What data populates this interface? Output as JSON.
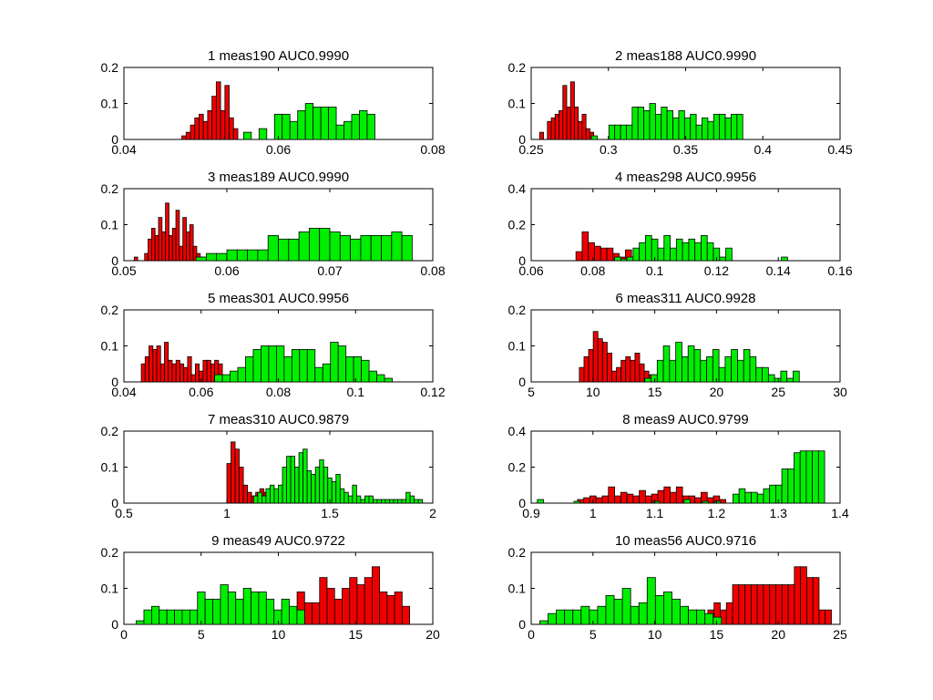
{
  "colors": {
    "red": "#ee0000",
    "green": "#00ee00",
    "edge": "#000000",
    "background": "#ffffff",
    "axes": "#000000"
  },
  "chart_data": [
    {
      "type": "bar",
      "title": "1 meas190 AUC0.9990",
      "xlim": [
        0.04,
        0.08
      ],
      "ylim": [
        0,
        0.2
      ],
      "xticks": [
        "0.04",
        "0.06",
        "0.08"
      ],
      "xtick_values": [
        0.04,
        0.06,
        0.08
      ],
      "yticks": [
        "0",
        "0.1",
        "0.2"
      ],
      "ytick_values": [
        0,
        0.1,
        0.2
      ],
      "series": [
        {
          "color": "red",
          "bin_edges": [
            0.0475,
            0.05475
          ],
          "values": [
            0.01,
            0.02,
            0.04,
            0.06,
            0.07,
            0.05,
            0.08,
            0.12,
            0.16,
            0.08,
            0.15,
            0.06,
            0.03
          ]
        },
        {
          "color": "green",
          "bin_edges": [
            0.0555,
            0.0725
          ],
          "values": [
            0.02,
            0,
            0.03,
            0,
            0.07,
            0.07,
            0.05,
            0.08,
            0.1,
            0.09,
            0.09,
            0.09,
            0.04,
            0.05,
            0.07,
            0.08,
            0.07
          ]
        }
      ]
    },
    {
      "type": "bar",
      "title": "2 meas188 AUC0.9990",
      "xlim": [
        0.25,
        0.45
      ],
      "ylim": [
        0,
        0.2
      ],
      "xticks": [
        "0.25",
        "0.3",
        "0.35",
        "0.4",
        "0.45"
      ],
      "xtick_values": [
        0.25,
        0.3,
        0.35,
        0.4,
        0.45
      ],
      "yticks": [
        "0",
        "0.1",
        "0.2"
      ],
      "ytick_values": [
        0,
        0.1,
        0.2
      ],
      "series": [
        {
          "color": "red",
          "bin_edges": [
            0.2555,
            0.2905
          ],
          "values": [
            0.02,
            0,
            0.05,
            0.06,
            0.07,
            0.08,
            0.15,
            0.09,
            0.16,
            0.09,
            0.05,
            0.07,
            0.03,
            0.02
          ]
        },
        {
          "color": "green",
          "bin_edges": [
            0.289,
            0.387
          ],
          "values": [
            0.01,
            0,
            0,
            0.04,
            0.04,
            0.04,
            0.04,
            0.09,
            0.09,
            0.08,
            0.1,
            0.07,
            0.09,
            0.08,
            0.06,
            0.08,
            0.06,
            0.07,
            0.04,
            0.06,
            0.05,
            0.07,
            0.07,
            0.06,
            0.07,
            0.07
          ]
        }
      ]
    },
    {
      "type": "bar",
      "title": "3 meas189 AUC0.9990",
      "xlim": [
        0.05,
        0.08
      ],
      "ylim": [
        0,
        0.2
      ],
      "xticks": [
        "0.05",
        "0.06",
        "0.07",
        "0.08"
      ],
      "xtick_values": [
        0.05,
        0.06,
        0.07,
        0.08
      ],
      "yticks": [
        "0",
        "0.1",
        "0.2"
      ],
      "ytick_values": [
        0,
        0.1,
        0.2
      ],
      "series": [
        {
          "color": "red",
          "bin_edges": [
            0.051,
            0.05775
          ],
          "values": [
            0.01,
            0,
            0,
            0.02,
            0.06,
            0.09,
            0.07,
            0.12,
            0.08,
            0.16,
            0.07,
            0.09,
            0.14,
            0.04,
            0.12,
            0.08,
            0.1,
            0.04,
            0.02,
            0.01
          ]
        },
        {
          "color": "green",
          "bin_edges": [
            0.057,
            0.078
          ],
          "values": [
            0.01,
            0.02,
            0.02,
            0.03,
            0.03,
            0.03,
            0.03,
            0.07,
            0.06,
            0.06,
            0.08,
            0.09,
            0.09,
            0.08,
            0.07,
            0.06,
            0.07,
            0.07,
            0.07,
            0.08,
            0.07
          ]
        }
      ]
    },
    {
      "type": "bar",
      "title": "4 meas298 AUC0.9956",
      "xlim": [
        0.06,
        0.16
      ],
      "ylim": [
        0,
        0.4
      ],
      "xticks": [
        "0.06",
        "0.08",
        "0.1",
        "0.12",
        "0.14",
        "0.16"
      ],
      "xtick_values": [
        0.06,
        0.08,
        0.1,
        0.12,
        0.14,
        0.16
      ],
      "yticks": [
        "0",
        "0.2",
        "0.4"
      ],
      "ytick_values": [
        0,
        0.2,
        0.4
      ],
      "series": [
        {
          "color": "red",
          "bin_edges": [
            0.0745,
            0.0945
          ],
          "values": [
            0.05,
            0.16,
            0.1,
            0.08,
            0.07,
            0.07,
            0.04,
            0.02,
            0.06,
            0.02
          ]
        },
        {
          "color": "green",
          "bin_edges": [
            0.087,
            0.145
          ],
          "values": [
            0.02,
            0.01,
            0.02,
            0.07,
            0.1,
            0.14,
            0.12,
            0.07,
            0.14,
            0.07,
            0.12,
            0.1,
            0.12,
            0.1,
            0.14,
            0.1,
            0.07,
            0.02,
            0.07,
            0,
            0,
            0,
            0,
            0,
            0,
            0,
            0,
            0.02,
            0
          ]
        }
      ]
    },
    {
      "type": "bar",
      "title": "5 meas301 AUC0.9956",
      "xlim": [
        0.04,
        0.12
      ],
      "ylim": [
        0,
        0.2
      ],
      "xticks": [
        "0.04",
        "0.06",
        "0.08",
        "0.1",
        "0.12"
      ],
      "xtick_values": [
        0.04,
        0.06,
        0.08,
        0.1,
        0.12
      ],
      "yticks": [
        "0",
        "0.1",
        "0.2"
      ],
      "ytick_values": [
        0,
        0.1,
        0.2
      ],
      "series": [
        {
          "color": "red",
          "bin_edges": [
            0.0445,
            0.0665
          ],
          "values": [
            0.05,
            0.07,
            0.1,
            0.09,
            0.1,
            0.05,
            0.11,
            0.06,
            0.05,
            0.06,
            0.05,
            0.04,
            0.07,
            0.02,
            0.05,
            0.03,
            0.06,
            0.06,
            0.05,
            0.06,
            0.05,
            0.01
          ]
        },
        {
          "color": "green",
          "bin_edges": [
            0.0635,
            0.1095
          ],
          "values": [
            0.02,
            0.02,
            0.03,
            0.04,
            0.07,
            0.09,
            0.1,
            0.1,
            0.1,
            0.07,
            0.09,
            0.09,
            0.09,
            0.04,
            0.05,
            0.11,
            0.1,
            0.07,
            0.07,
            0.06,
            0.03,
            0.02,
            0.01
          ]
        }
      ]
    },
    {
      "type": "bar",
      "title": "6 meas311 AUC0.9928",
      "xlim": [
        5,
        30
      ],
      "ylim": [
        0,
        0.2
      ],
      "xticks": [
        "5",
        "10",
        "15",
        "20",
        "25",
        "30"
      ],
      "xtick_values": [
        5,
        10,
        15,
        20,
        25,
        30
      ],
      "yticks": [
        "0",
        "0.1",
        "0.2"
      ],
      "ytick_values": [
        0,
        0.1,
        0.2
      ],
      "series": [
        {
          "color": "red",
          "bin_edges": [
            8.9,
            14.9
          ],
          "values": [
            0.04,
            0.07,
            0.09,
            0.14,
            0.12,
            0.11,
            0.08,
            0.03,
            0.04,
            0.06,
            0.07,
            0.06,
            0.08,
            0.05,
            0.03,
            0.02
          ]
        },
        {
          "color": "green",
          "bin_edges": [
            14.2,
            26.7
          ],
          "values": [
            0.01,
            0.02,
            0.06,
            0.1,
            0.06,
            0.11,
            0.07,
            0.1,
            0.09,
            0.06,
            0.07,
            0.09,
            0.04,
            0.07,
            0.09,
            0.06,
            0.09,
            0.07,
            0.04,
            0.04,
            0.02,
            0.01,
            0.03,
            0.01,
            0.03
          ]
        }
      ]
    },
    {
      "type": "bar",
      "title": "7 meas310 AUC0.9879",
      "xlim": [
        0.5,
        2
      ],
      "ylim": [
        0,
        0.2
      ],
      "xticks": [
        "0.5",
        "1",
        "1.5",
        "2"
      ],
      "xtick_values": [
        0.5,
        1,
        1.5,
        2
      ],
      "yticks": [
        "0",
        "0.1",
        "0.2"
      ],
      "ytick_values": [
        0,
        0.1,
        0.2
      ],
      "series": [
        {
          "color": "red",
          "bin_edges": [
            1.0,
            1.44
          ],
          "values": [
            0.11,
            0.17,
            0.15,
            0.1,
            0.05,
            0.03,
            0.02,
            0.03,
            0.04,
            0.03,
            0.04,
            0.03,
            0.02,
            0.02,
            0.03,
            0.02,
            0.01,
            0.01,
            0.02,
            0.01,
            0.01,
            0.02
          ]
        },
        {
          "color": "green",
          "bin_edges": [
            1.13,
            1.95
          ],
          "values": [
            0.02,
            0.03,
            0.02,
            0.04,
            0.05,
            0.04,
            0.05,
            0.1,
            0.13,
            0.13,
            0.1,
            0.14,
            0.15,
            0.09,
            0.08,
            0.1,
            0.12,
            0.1,
            0.07,
            0.06,
            0.08,
            0.04,
            0.03,
            0.02,
            0.05,
            0.02,
            0.01,
            0.02,
            0.02,
            0.01,
            0.01,
            0.01,
            0.01,
            0.01,
            0.01,
            0.01,
            0.01,
            0.03,
            0.02,
            0.01,
            0.01
          ]
        }
      ]
    },
    {
      "type": "bar",
      "title": "8 meas9 AUC0.9799",
      "xlim": [
        0.9,
        1.4
      ],
      "ylim": [
        0,
        0.4
      ],
      "xticks": [
        "0.9",
        "1",
        "1.1",
        "1.2",
        "1.3",
        "1.4"
      ],
      "xtick_values": [
        0.9,
        1.0,
        1.1,
        1.2,
        1.3,
        1.4
      ],
      "yticks": [
        "0",
        "0.2",
        "0.4"
      ],
      "ytick_values": [
        0,
        0.2,
        0.4
      ],
      "series": [
        {
          "color": "red",
          "bin_edges": [
            0.975,
            1.215
          ],
          "values": [
            0.02,
            0.03,
            0.04,
            0.03,
            0.04,
            0.09,
            0.04,
            0.06,
            0.05,
            0.04,
            0.07,
            0.04,
            0.05,
            0.07,
            0.09,
            0.06,
            0.09,
            0.04,
            0.04,
            0.03,
            0.06,
            0.03,
            0.04,
            0.02
          ]
        },
        {
          "color": "green",
          "bin_edges": [
            0.91,
            1.375
          ],
          "values": [
            0.02,
            0,
            0,
            0,
            0,
            0,
            0.01,
            0,
            0,
            0,
            0,
            0,
            0,
            0,
            0,
            0,
            0,
            0,
            0,
            0.01,
            0,
            0,
            0,
            0,
            0.02,
            0,
            0,
            0.01,
            0,
            0.01,
            0,
            0,
            0.05,
            0.08,
            0.06,
            0.06,
            0.05,
            0.08,
            0.1,
            0.1,
            0.19,
            0.19,
            0.28,
            0.29,
            0.29,
            0.29,
            0.29
          ]
        }
      ]
    },
    {
      "type": "bar",
      "title": "9 meas49 AUC0.9722",
      "xlim": [
        0,
        20
      ],
      "ylim": [
        0,
        0.2
      ],
      "xticks": [
        "0",
        "5",
        "10",
        "15",
        "20"
      ],
      "xtick_values": [
        0,
        5,
        10,
        15,
        20
      ],
      "yticks": [
        "0",
        "0.1",
        "0.2"
      ],
      "ytick_values": [
        0,
        0.1,
        0.2
      ],
      "series": [
        {
          "color": "red",
          "bin_edges": [
            4.9,
            18.5
          ],
          "values": [
            0.02,
            0,
            0,
            0.01,
            0.01,
            0.02,
            0.02,
            0.01,
            0.04,
            0.01,
            0.01,
            0.02,
            0.04,
            0.09,
            0.06,
            0.06,
            0.13,
            0.1,
            0.07,
            0.1,
            0.13,
            0.11,
            0.13,
            0.16,
            0.09,
            0.08,
            0.09,
            0.05
          ]
        },
        {
          "color": "green",
          "bin_edges": [
            0.8,
            11.7
          ],
          "values": [
            0.01,
            0.04,
            0.05,
            0.04,
            0.04,
            0.04,
            0.04,
            0.04,
            0.09,
            0.07,
            0.07,
            0.11,
            0.09,
            0.07,
            0.1,
            0.09,
            0.09,
            0.07,
            0.04,
            0.07,
            0.05,
            0.04
          ]
        }
      ]
    },
    {
      "type": "bar",
      "title": "10 meas56 AUC0.9716",
      "xlim": [
        0,
        25
      ],
      "ylim": [
        0,
        0.2
      ],
      "xticks": [
        "0",
        "5",
        "10",
        "15",
        "20",
        "25"
      ],
      "xtick_values": [
        0,
        5,
        10,
        15,
        20,
        25
      ],
      "yticks": [
        "0",
        "0.1",
        "0.2"
      ],
      "ytick_values": [
        0,
        0.1,
        0.2
      ],
      "series": [
        {
          "color": "red",
          "bin_edges": [
            6.8,
            24.3
          ],
          "values": [
            0.02,
            0.02,
            0,
            0,
            0,
            0.02,
            0.02,
            0.02,
            0.02,
            0.02,
            0.02,
            0.02,
            0.01,
            0.02,
            0.02,
            0.04,
            0.06,
            0.04,
            0.06,
            0.11,
            0.11,
            0.11,
            0.11,
            0.11,
            0.11,
            0.11,
            0.11,
            0.11,
            0.11,
            0.16,
            0.16,
            0.13,
            0.13,
            0.04,
            0.04
          ]
        },
        {
          "color": "green",
          "bin_edges": [
            0.7,
            15.4
          ],
          "values": [
            0.01,
            0.03,
            0.04,
            0.04,
            0.04,
            0.05,
            0.04,
            0.05,
            0.08,
            0.07,
            0.1,
            0.05,
            0.06,
            0.13,
            0.08,
            0.09,
            0.07,
            0.05,
            0.04,
            0.04,
            0.03,
            0.02
          ]
        }
      ]
    }
  ]
}
